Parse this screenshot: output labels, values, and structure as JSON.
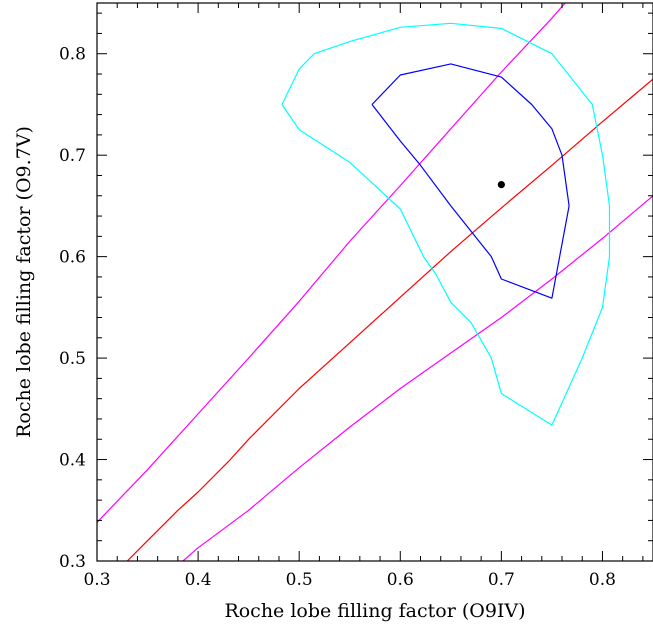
{
  "chart_data": {
    "type": "line",
    "title": "",
    "xlabel": "Roche lobe filling factor (O9IV)",
    "ylabel": "Roche lobe filling factor (O9.7V)",
    "xlim": [
      0.3,
      0.85
    ],
    "ylim": [
      0.3,
      0.85
    ],
    "x_ticks": [
      "0.3",
      "0.4",
      "0.5",
      "0.6",
      "0.7",
      "0.8"
    ],
    "y_ticks": [
      "0.3",
      "0.4",
      "0.5",
      "0.6",
      "0.7",
      "0.8"
    ],
    "grid": false,
    "legend": "none",
    "series": [
      {
        "kind": "line",
        "color": "#ff0000",
        "points": [
          [
            0.33,
            0.3
          ],
          [
            0.35,
            0.32
          ],
          [
            0.38,
            0.35
          ],
          [
            0.4,
            0.368
          ],
          [
            0.43,
            0.398
          ],
          [
            0.45,
            0.42
          ],
          [
            0.5,
            0.47
          ],
          [
            0.55,
            0.515
          ],
          [
            0.6,
            0.56
          ],
          [
            0.65,
            0.605
          ],
          [
            0.7,
            0.648
          ],
          [
            0.75,
            0.69
          ],
          [
            0.8,
            0.733
          ],
          [
            0.85,
            0.775
          ]
        ]
      },
      {
        "kind": "line",
        "color": "#ff00ff",
        "points": [
          [
            0.3,
            0.338
          ],
          [
            0.35,
            0.39
          ],
          [
            0.4,
            0.445
          ],
          [
            0.45,
            0.5
          ],
          [
            0.5,
            0.556
          ],
          [
            0.55,
            0.615
          ],
          [
            0.6,
            0.67
          ],
          [
            0.65,
            0.726
          ],
          [
            0.7,
            0.782
          ],
          [
            0.75,
            0.835
          ],
          [
            0.763,
            0.85
          ]
        ]
      },
      {
        "kind": "line",
        "color": "#ff00ff",
        "points": [
          [
            0.385,
            0.3
          ],
          [
            0.4,
            0.313
          ],
          [
            0.45,
            0.35
          ],
          [
            0.5,
            0.392
          ],
          [
            0.55,
            0.432
          ],
          [
            0.6,
            0.47
          ],
          [
            0.65,
            0.505
          ],
          [
            0.7,
            0.54
          ],
          [
            0.75,
            0.578
          ],
          [
            0.8,
            0.618
          ],
          [
            0.85,
            0.66
          ]
        ]
      },
      {
        "kind": "contour",
        "color": "#00ffff",
        "points": [
          [
            0.483,
            0.75
          ],
          [
            0.5,
            0.785
          ],
          [
            0.515,
            0.8
          ],
          [
            0.55,
            0.812
          ],
          [
            0.6,
            0.826
          ],
          [
            0.65,
            0.83
          ],
          [
            0.7,
            0.825
          ],
          [
            0.75,
            0.8
          ],
          [
            0.79,
            0.75
          ],
          [
            0.8,
            0.7
          ],
          [
            0.807,
            0.65
          ],
          [
            0.807,
            0.6
          ],
          [
            0.8,
            0.55
          ],
          [
            0.78,
            0.5
          ],
          [
            0.75,
            0.434
          ],
          [
            0.7,
            0.465
          ],
          [
            0.69,
            0.5
          ],
          [
            0.67,
            0.535
          ],
          [
            0.65,
            0.555
          ],
          [
            0.635,
            0.583
          ],
          [
            0.623,
            0.6
          ],
          [
            0.6,
            0.647
          ],
          [
            0.55,
            0.693
          ],
          [
            0.5,
            0.725
          ],
          [
            0.483,
            0.75
          ]
        ]
      },
      {
        "kind": "contour",
        "color": "#0000ff",
        "points": [
          [
            0.572,
            0.75
          ],
          [
            0.6,
            0.779
          ],
          [
            0.65,
            0.79
          ],
          [
            0.7,
            0.777
          ],
          [
            0.73,
            0.75
          ],
          [
            0.75,
            0.726
          ],
          [
            0.76,
            0.7
          ],
          [
            0.767,
            0.65
          ],
          [
            0.75,
            0.559
          ],
          [
            0.7,
            0.578
          ],
          [
            0.69,
            0.6
          ],
          [
            0.65,
            0.65
          ],
          [
            0.62,
            0.69
          ],
          [
            0.6,
            0.714
          ],
          [
            0.572,
            0.75
          ]
        ]
      },
      {
        "kind": "point",
        "color": "#000000",
        "points": [
          [
            0.7,
            0.671
          ]
        ]
      }
    ]
  }
}
